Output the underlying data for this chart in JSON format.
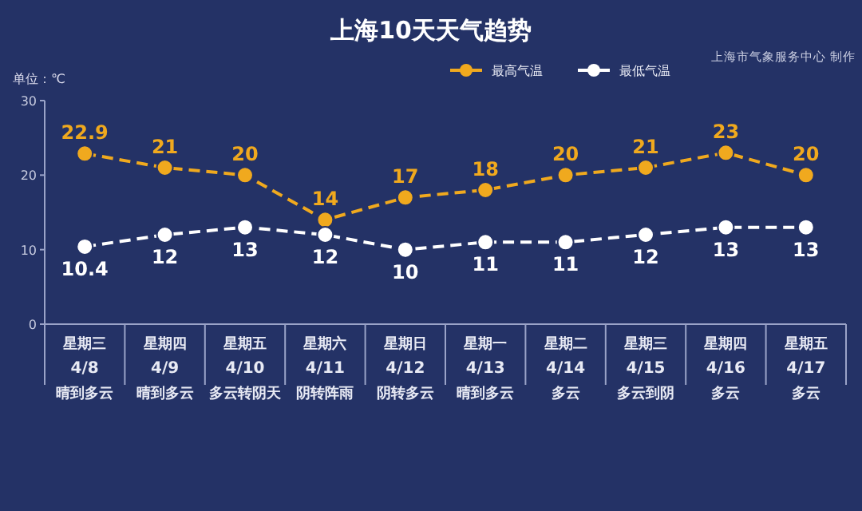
{
  "chart_data": {
    "type": "line",
    "title": "上海10天天气趋势",
    "ylabel": "单位：℃",
    "annotations": [
      "上海市气象服务中心 制作"
    ],
    "categories": [
      "星期三\n4/8\n晴到多云",
      "星期四\n4/9\n晴到多云",
      "星期五\n4/10\n多云转阴天",
      "星期六\n4/11\n阴转阵雨",
      "星期日\n4/12\n阴转多云",
      "星期一\n4/13\n晴到多云",
      "星期二\n4/14\n多云",
      "星期三\n4/15\n多云到阴",
      "星期四\n4/16\n多云",
      "星期五\n4/17\n多云"
    ],
    "series": [
      {
        "name": "最高气温",
        "color": "#f0a91e",
        "values": [
          22.9,
          21,
          20,
          14,
          17,
          18,
          20,
          21,
          23,
          20
        ]
      },
      {
        "name": "最低气温",
        "color": "#ffffff",
        "values": [
          10.4,
          12,
          13,
          12,
          10,
          11,
          11,
          12,
          13,
          13
        ]
      }
    ],
    "ylim": [
      0,
      30
    ],
    "yticks": [
      0,
      10,
      20,
      30
    ],
    "data_labels": true,
    "legend": "top",
    "marker": "circle",
    "line_style": "dashed"
  }
}
